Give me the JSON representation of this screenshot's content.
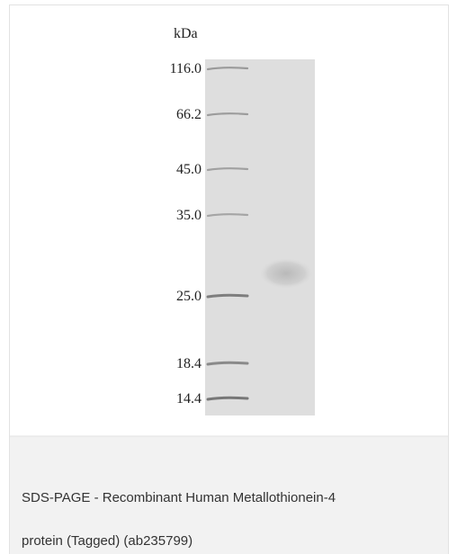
{
  "gel": {
    "unit": "kDa",
    "markers": [
      "116.0",
      "66.2",
      "45.0",
      "35.0",
      "25.0",
      "18.4",
      "14.4"
    ]
  },
  "caption": {
    "lines": [
      "SDS-PAGE - Recombinant Human Metallothionein-4",
      "protein (Tagged) (ab235799)"
    ]
  }
}
